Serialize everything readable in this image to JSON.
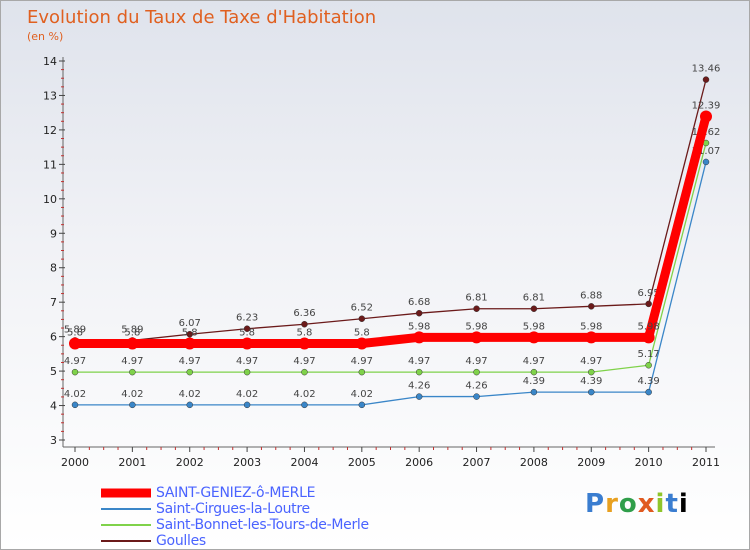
{
  "title": "Evolution du Taux de Taxe d'Habitation",
  "unit": "(en %)",
  "logo": "Proxiti",
  "chart_data": {
    "type": "line",
    "title": "Evolution du Taux de Taxe d'Habitation",
    "ylabel": "(en %)",
    "x": [
      "2000",
      "2001",
      "2002",
      "2003",
      "2004",
      "2005",
      "2006",
      "2007",
      "2008",
      "2009",
      "2010",
      "2011"
    ],
    "ylim": [
      3,
      14
    ],
    "yticks": [
      "3",
      "4",
      "5",
      "6",
      "7",
      "8",
      "9",
      "10",
      "11",
      "12",
      "13",
      "14"
    ],
    "grid": false,
    "legend_position": "bottom-left",
    "series": [
      {
        "name": "Goulles",
        "color": "#6b1a1a",
        "values": [
          5.89,
          5.89,
          6.07,
          6.23,
          6.36,
          6.52,
          6.68,
          6.81,
          6.81,
          6.88,
          6.95,
          13.46
        ],
        "labels": [
          "5.89",
          "5.89",
          "6.07",
          "6.23",
          "6.36",
          "6.52",
          "6.68",
          "6.81",
          "6.81",
          "6.88",
          "6.95",
          "13.46"
        ]
      },
      {
        "name": "Saint-Bonnet-les-Tours-de-Merle",
        "color": "#7fd24a",
        "values": [
          4.97,
          4.97,
          4.97,
          4.97,
          4.97,
          4.97,
          4.97,
          4.97,
          4.97,
          4.97,
          5.17,
          11.62
        ],
        "labels": [
          "4.97",
          "4.97",
          "4.97",
          "4.97",
          "4.97",
          "4.97",
          "4.97",
          "4.97",
          "4.97",
          "4.97",
          "5.17",
          "11.62"
        ]
      },
      {
        "name": "Saint-Cirgues-la-Loutre",
        "color": "#3a86c8",
        "values": [
          4.02,
          4.02,
          4.02,
          4.02,
          4.02,
          4.02,
          4.26,
          4.26,
          4.39,
          4.39,
          4.39,
          11.07
        ],
        "labels": [
          "4.02",
          "4.02",
          "4.02",
          "4.02",
          "4.02",
          "4.02",
          "4.26",
          "4.26",
          "4.39",
          "4.39",
          "4.39",
          "11.07"
        ]
      },
      {
        "name": "SAINT-GENIEZ-ô-MERLE",
        "color": "#ff0000",
        "values": [
          5.8,
          5.8,
          5.8,
          5.8,
          5.8,
          5.8,
          5.98,
          5.98,
          5.98,
          5.98,
          5.98,
          12.39
        ],
        "labels": [
          "5.8",
          "5.8",
          "5.8",
          "5.8",
          "5.8",
          "5.8",
          "5.98",
          "5.98",
          "5.98",
          "5.98",
          "5.98",
          "12.39"
        ]
      }
    ]
  },
  "legend": [
    {
      "label": "SAINT-GENIEZ-ô-MERLE",
      "color": "#ff0000",
      "width": "thick"
    },
    {
      "label": "Saint-Cirgues-la-Loutre",
      "color": "#3a86c8",
      "width": "thin"
    },
    {
      "label": "Saint-Bonnet-les-Tours-de-Merle",
      "color": "#7fd24a",
      "width": "thin"
    },
    {
      "label": "Goulles",
      "color": "#6b1a1a",
      "width": "thin"
    }
  ]
}
